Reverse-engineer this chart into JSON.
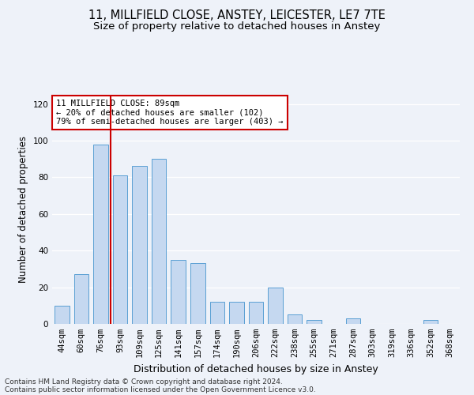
{
  "title1": "11, MILLFIELD CLOSE, ANSTEY, LEICESTER, LE7 7TE",
  "title2": "Size of property relative to detached houses in Anstey",
  "xlabel": "Distribution of detached houses by size in Anstey",
  "ylabel": "Number of detached properties",
  "categories": [
    "44sqm",
    "60sqm",
    "76sqm",
    "93sqm",
    "109sqm",
    "125sqm",
    "141sqm",
    "157sqm",
    "174sqm",
    "190sqm",
    "206sqm",
    "222sqm",
    "238sqm",
    "255sqm",
    "271sqm",
    "287sqm",
    "303sqm",
    "319sqm",
    "336sqm",
    "352sqm",
    "368sqm"
  ],
  "values": [
    10,
    27,
    98,
    81,
    86,
    90,
    35,
    33,
    12,
    12,
    12,
    20,
    5,
    2,
    0,
    3,
    0,
    0,
    0,
    2,
    0
  ],
  "bar_color": "#c5d8f0",
  "bar_edge_color": "#5a9fd4",
  "vline_x_index": 2,
  "vline_color": "#cc0000",
  "annotation_line1": "11 MILLFIELD CLOSE: 89sqm",
  "annotation_line2": "← 20% of detached houses are smaller (102)",
  "annotation_line3": "79% of semi-detached houses are larger (403) →",
  "annotation_box_color": "#ffffff",
  "annotation_box_edge": "#cc0000",
  "ylim": [
    0,
    125
  ],
  "yticks": [
    0,
    20,
    40,
    60,
    80,
    100,
    120
  ],
  "footnote1": "Contains HM Land Registry data © Crown copyright and database right 2024.",
  "footnote2": "Contains public sector information licensed under the Open Government Licence v3.0.",
  "bg_color": "#eef2f9",
  "grid_color": "#ffffff",
  "title1_fontsize": 10.5,
  "title2_fontsize": 9.5,
  "bar_width": 0.75,
  "xlabel_fontsize": 9,
  "ylabel_fontsize": 8.5,
  "tick_fontsize": 7.5,
  "annot_fontsize": 7.5,
  "footnote_fontsize": 6.5
}
